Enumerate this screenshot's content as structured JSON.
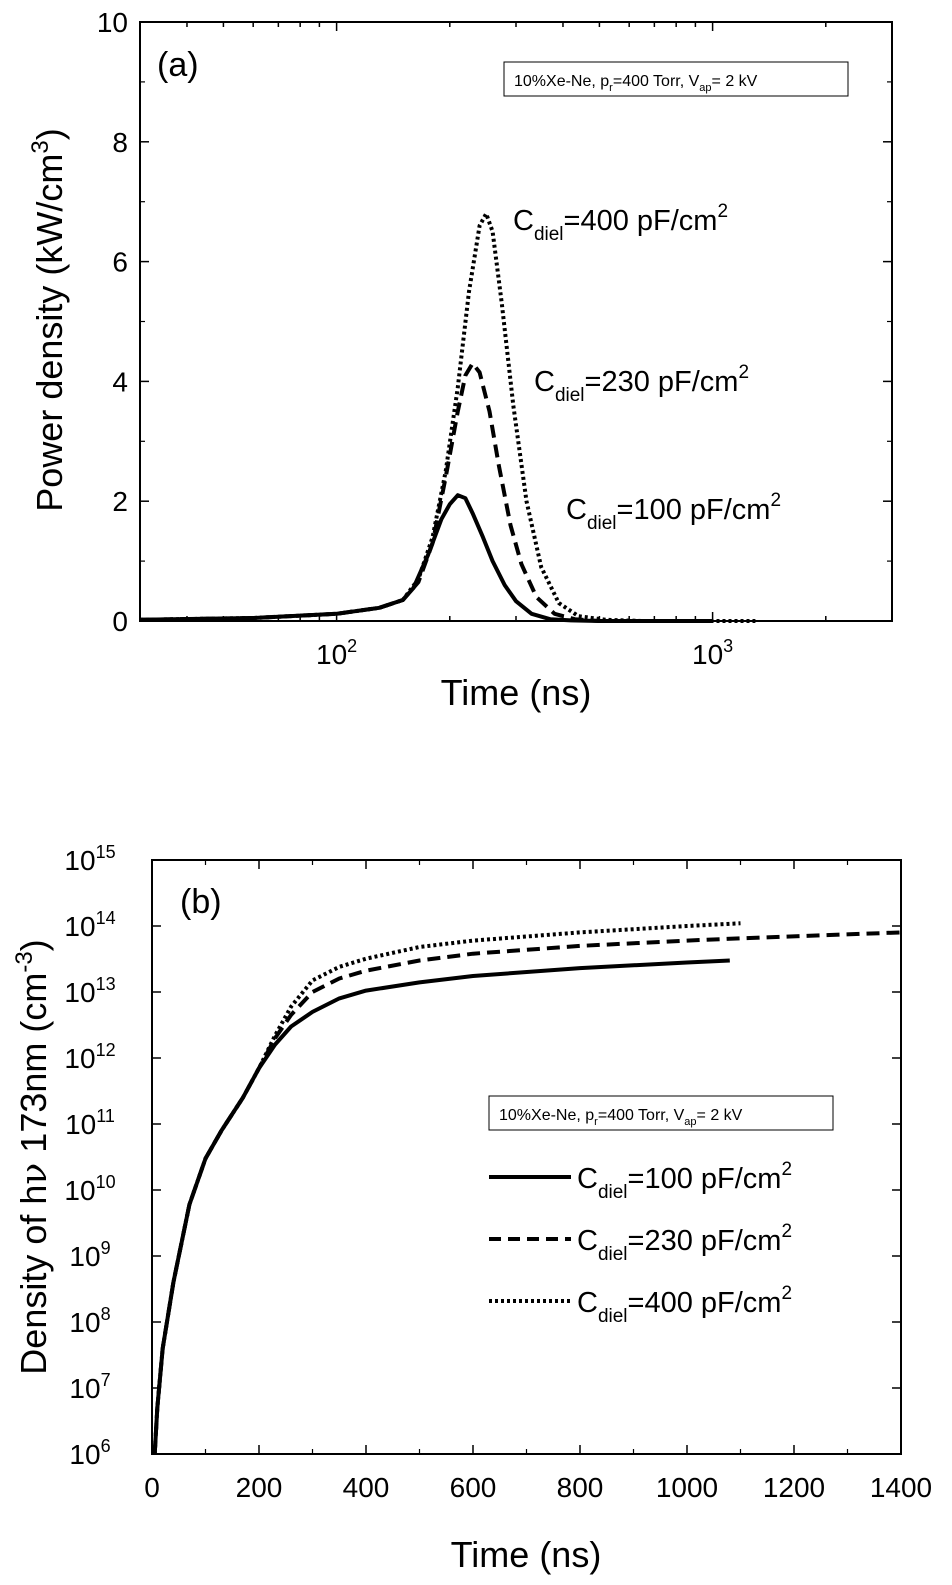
{
  "figure": {
    "panel_a": {
      "label": "(a)",
      "condition_box": {
        "main": "10%Xe-Ne, p",
        "p_sub": "r",
        "mid": "=400 Torr, V",
        "v_sub": "ap",
        "tail": "= 2 kV"
      },
      "ylabel": "Power density (kW/cm",
      "ylabel_sup": "3",
      "ylabel_close": ")",
      "xlabel": "Time (ns)"
    },
    "panel_b": {
      "label": "(b)",
      "condition_box": {
        "main": "10%Xe-Ne, p",
        "p_sub": "r",
        "mid": "=400 Torr, V",
        "v_sub": "ap",
        "tail": "= 2 kV"
      },
      "ylabel_pre": "Density of h",
      "ylabel_nu": "ν",
      "ylabel_mid": " 173nm (cm",
      "ylabel_sup": "-3",
      "ylabel_close": ")",
      "xlabel": "Time (ns)"
    },
    "series_labels": [
      {
        "c": "C",
        "sub": "diel",
        "val": "=100 pF/cm",
        "sup": "2"
      },
      {
        "c": "C",
        "sub": "diel",
        "val": "=230 pF/cm",
        "sup": "2"
      },
      {
        "c": "C",
        "sub": "diel",
        "val": "=400 pF/cm",
        "sup": "2"
      }
    ]
  },
  "chart_data": [
    {
      "type": "line",
      "panel": "(a)",
      "x_scale": "log",
      "xlim": [
        30,
        3000
      ],
      "ylim": [
        0,
        10
      ],
      "xticks": [
        {
          "value": 100,
          "base": "10",
          "exp": "2"
        },
        {
          "value": 1000,
          "base": "10",
          "exp": "3"
        }
      ],
      "yticks": [
        "0",
        "2",
        "4",
        "6",
        "8",
        "10"
      ],
      "series": [
        {
          "style": "solid",
          "x": [
            30,
            60,
            100,
            130,
            150,
            160,
            175,
            190,
            200,
            210,
            220,
            230,
            245,
            260,
            280,
            300,
            330,
            370,
            420,
            500,
            700,
            1000
          ],
          "y": [
            0.02,
            0.05,
            0.12,
            0.22,
            0.35,
            0.55,
            1.1,
            1.7,
            1.95,
            2.1,
            2.05,
            1.8,
            1.4,
            1.0,
            0.6,
            0.33,
            0.12,
            0.03,
            0.01,
            0.0,
            0.0,
            0.0
          ]
        },
        {
          "style": "dash",
          "x": [
            30,
            60,
            100,
            130,
            150,
            165,
            180,
            195,
            210,
            220,
            230,
            240,
            255,
            270,
            290,
            310,
            340,
            380,
            430,
            500,
            700
          ],
          "y": [
            0.02,
            0.05,
            0.12,
            0.22,
            0.35,
            0.65,
            1.3,
            2.4,
            3.5,
            4.1,
            4.3,
            4.15,
            3.5,
            2.6,
            1.6,
            0.95,
            0.4,
            0.12,
            0.03,
            0.0,
            0.0
          ]
        },
        {
          "style": "dot",
          "x": [
            30,
            60,
            100,
            130,
            150,
            165,
            180,
            195,
            210,
            225,
            240,
            250,
            260,
            275,
            295,
            320,
            350,
            390,
            440,
            520,
            650,
            1000,
            1300
          ],
          "y": [
            0.02,
            0.05,
            0.12,
            0.22,
            0.35,
            0.7,
            1.4,
            2.5,
            3.9,
            5.5,
            6.6,
            6.8,
            6.5,
            5.3,
            3.6,
            2.0,
            0.9,
            0.3,
            0.08,
            0.02,
            0.0,
            0.0,
            0.0
          ]
        }
      ]
    },
    {
      "type": "line",
      "panel": "(b)",
      "y_scale": "log",
      "xlim": [
        0,
        1400
      ],
      "ylim": [
        1000000.0,
        1000000000000000.0
      ],
      "xticks": [
        "0",
        "200",
        "400",
        "600",
        "800",
        "1000",
        "1200",
        "1400"
      ],
      "yticks": [
        {
          "base": "10",
          "exp": "6"
        },
        {
          "base": "10",
          "exp": "7"
        },
        {
          "base": "10",
          "exp": "8"
        },
        {
          "base": "10",
          "exp": "9"
        },
        {
          "base": "10",
          "exp": "10"
        },
        {
          "base": "10",
          "exp": "11"
        },
        {
          "base": "10",
          "exp": "12"
        },
        {
          "base": "10",
          "exp": "13"
        },
        {
          "base": "10",
          "exp": "14"
        },
        {
          "base": "10",
          "exp": "15"
        }
      ],
      "series": [
        {
          "style": "solid",
          "x": [
            5,
            10,
            20,
            40,
            70,
            100,
            130,
            170,
            200,
            230,
            260,
            300,
            350,
            400,
            500,
            600,
            800,
            1000,
            1080
          ],
          "y": [
            1000000.0,
            5000000.0,
            40000000.0,
            400000000.0,
            6000000000.0,
            30000000000.0,
            80000000000.0,
            250000000000.0,
            700000000000.0,
            1600000000000.0,
            3000000000000.0,
            5000000000000.0,
            8000000000000.0,
            10500000000000.0,
            14000000000000.0,
            17500000000000.0,
            23000000000000.0,
            28000000000000.0,
            30000000000000.0
          ]
        },
        {
          "style": "dash",
          "x": [
            5,
            10,
            20,
            40,
            70,
            100,
            130,
            170,
            200,
            230,
            260,
            300,
            350,
            400,
            500,
            600,
            800,
            1000,
            1100,
            1400
          ],
          "y": [
            1000000.0,
            5000000.0,
            40000000.0,
            400000000.0,
            6000000000.0,
            30000000000.0,
            80000000000.0,
            250000000000.0,
            700000000000.0,
            2000000000000.0,
            4500000000000.0,
            10000000000000.0,
            16000000000000.0,
            21000000000000.0,
            30000000000000.0,
            38000000000000.0,
            50000000000000.0,
            60000000000000.0,
            65000000000000.0,
            80000000000000.0
          ]
        },
        {
          "style": "dot",
          "x": [
            5,
            10,
            20,
            40,
            70,
            100,
            130,
            170,
            200,
            230,
            260,
            300,
            350,
            400,
            500,
            600,
            800,
            1000,
            1100
          ],
          "y": [
            1000000.0,
            5000000.0,
            40000000.0,
            400000000.0,
            6000000000.0,
            30000000000.0,
            80000000000.0,
            250000000000.0,
            700000000000.0,
            2200000000000.0,
            6000000000000.0,
            15000000000000.0,
            24000000000000.0,
            32000000000000.0,
            48000000000000.0,
            60000000000000.0,
            80000000000000.0,
            100000000000000.0,
            110000000000000.0
          ]
        }
      ]
    }
  ]
}
